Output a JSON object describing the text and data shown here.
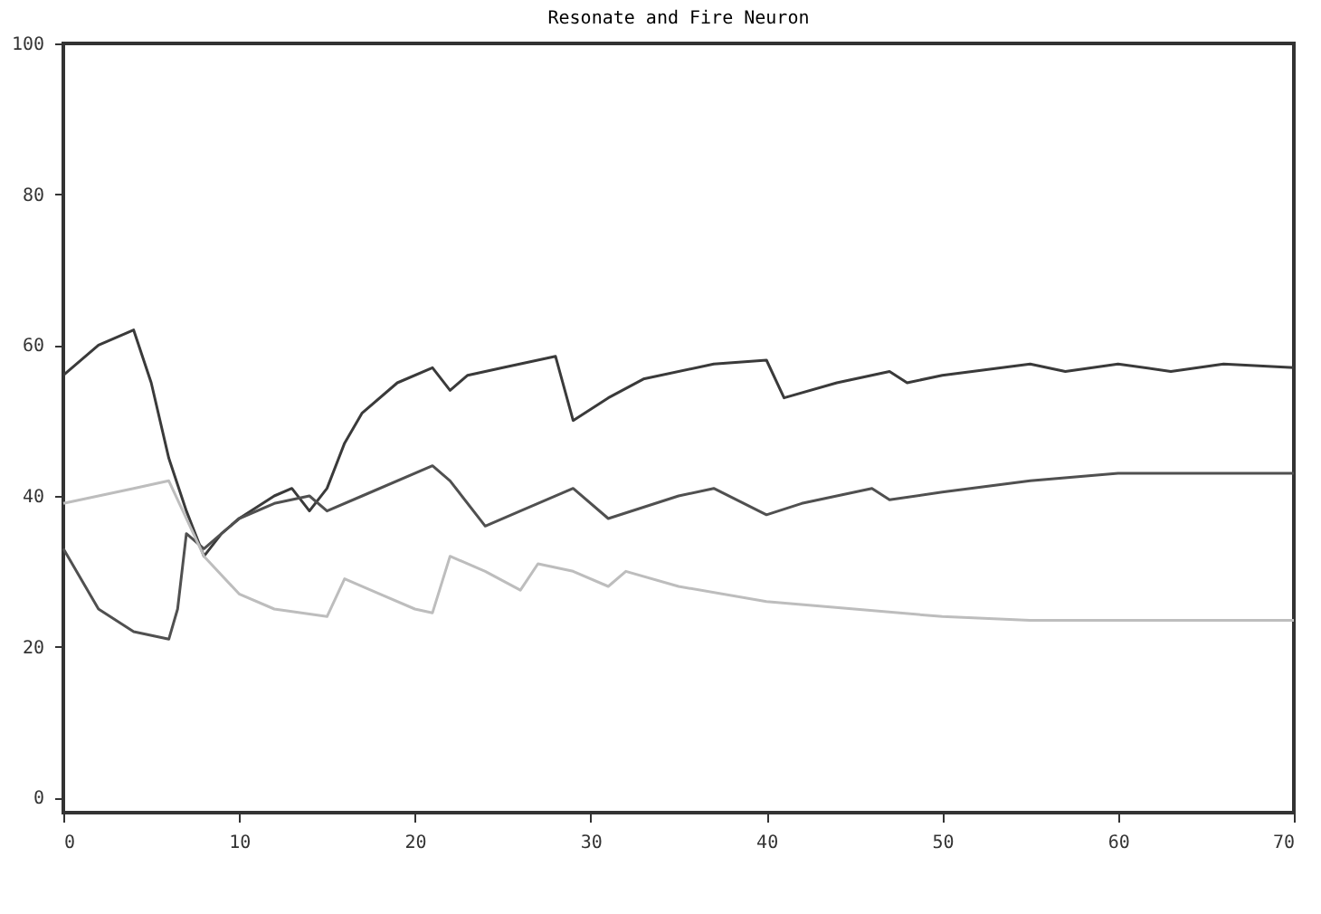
{
  "chart_data": {
    "type": "line",
    "title": "Resonate and Fire Neuron",
    "xlim": [
      0,
      70
    ],
    "ylim": [
      -2,
      100
    ],
    "xticks": [
      0,
      10,
      20,
      30,
      40,
      50,
      60,
      70
    ],
    "yticks": [
      0,
      20,
      40,
      60,
      80,
      100
    ],
    "grid": false,
    "legend": false,
    "line_style": "solid",
    "marker": "none",
    "series": [
      {
        "color": "#3a3a3a",
        "x": [
          0,
          2,
          4,
          5,
          6,
          7,
          8,
          9,
          10,
          12,
          13,
          14,
          15,
          16,
          17,
          19,
          21,
          22,
          23,
          25,
          28,
          29,
          31,
          33,
          37,
          40,
          41,
          44,
          47,
          48,
          50,
          55,
          57,
          60,
          63,
          66,
          70
        ],
        "values": [
          56,
          60,
          62,
          55,
          45,
          38,
          32,
          35,
          37,
          40,
          41,
          38,
          41,
          47,
          51,
          55,
          57,
          54,
          56,
          57,
          58.5,
          50,
          53,
          55.5,
          57.5,
          58,
          53,
          55,
          56.5,
          55,
          56,
          57.5,
          56.5,
          57.5,
          56.5,
          57.5,
          57
        ]
      },
      {
        "color": "#505050",
        "x": [
          0,
          2,
          4,
          6,
          6.5,
          7,
          8,
          9,
          10,
          12,
          14,
          15,
          17,
          21,
          22,
          24,
          26,
          29,
          31,
          35,
          37,
          40,
          42,
          46,
          47,
          50,
          55,
          60,
          70
        ],
        "values": [
          33,
          25,
          22,
          21,
          25,
          35,
          33,
          35,
          37,
          39,
          40,
          38,
          40,
          44,
          42,
          36,
          38,
          41,
          37,
          40,
          41,
          37.5,
          39,
          41,
          39.5,
          40.5,
          42,
          43,
          43
        ]
      },
      {
        "color": "#bdbdbd",
        "x": [
          0,
          4,
          6,
          8,
          10,
          12,
          15,
          16,
          18,
          20,
          21,
          22,
          24,
          26,
          27,
          29,
          31,
          32,
          35,
          40,
          45,
          50,
          55,
          70
        ],
        "values": [
          39,
          41,
          42,
          32,
          27,
          25,
          24,
          29,
          27,
          25,
          24.5,
          32,
          30,
          27.5,
          31,
          30,
          28,
          30,
          28,
          26,
          25,
          24,
          23.5,
          23.5
        ]
      }
    ]
  }
}
